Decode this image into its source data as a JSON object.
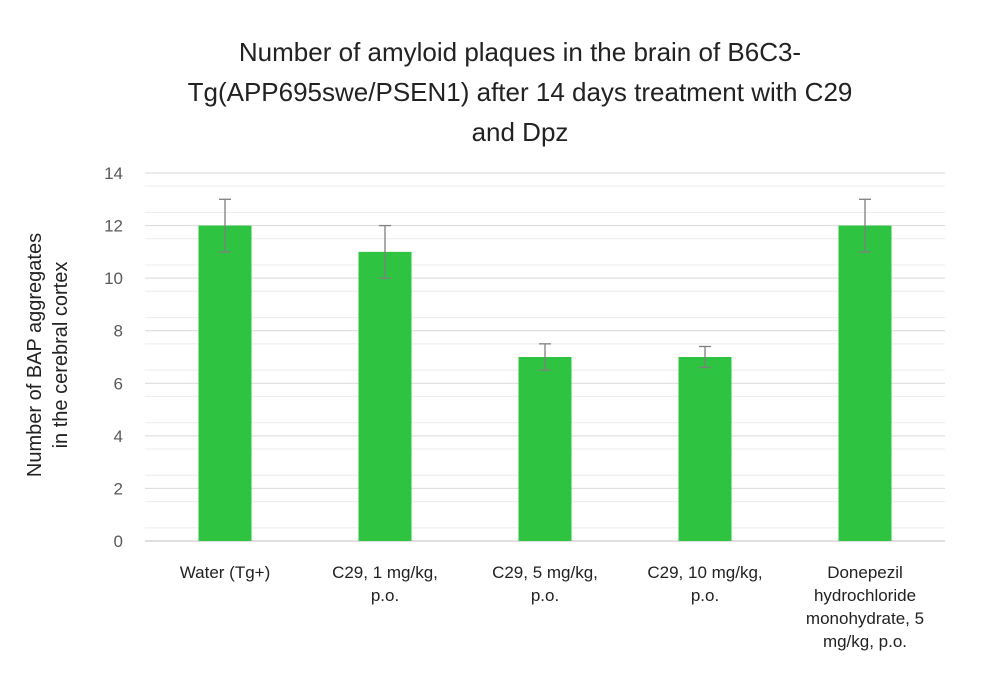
{
  "chart_data": {
    "type": "bar",
    "title_lines": [
      "Number of amyloid plaques in the brain of B6C3-",
      "Tg(APP695swe/PSEN1) after 14 days treatment with C29",
      "and Dpz"
    ],
    "ylabel_lines": [
      "Number of BAP aggregates",
      "in the cerebral cortex"
    ],
    "categories": [
      [
        "Water (Tg+)"
      ],
      [
        "C29, 1 mg/kg,",
        "p.o."
      ],
      [
        "C29, 5 mg/kg,",
        "p.o."
      ],
      [
        "C29, 10 mg/kg,",
        "p.o."
      ],
      [
        "Donepezil",
        "hydrochloride",
        "monohydrate, 5",
        "mg/kg, p.o."
      ]
    ],
    "values": [
      12,
      11,
      7,
      7,
      12
    ],
    "error": [
      1,
      1,
      0.5,
      0.4,
      1
    ],
    "ylim": [
      0,
      14
    ],
    "yticks": [
      0,
      2,
      4,
      6,
      8,
      10,
      12,
      14
    ],
    "grid": true,
    "bar_color": "#2ec441",
    "error_color": "#7f7f7f"
  }
}
